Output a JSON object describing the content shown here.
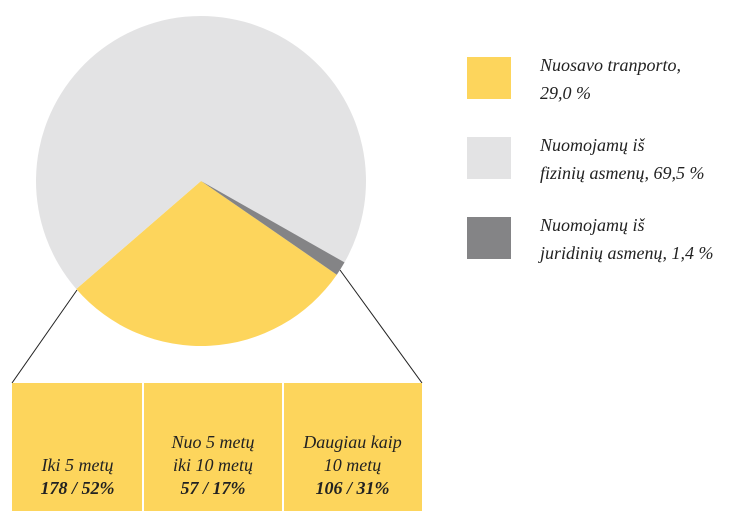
{
  "chart_data": {
    "type": "pie",
    "values": [
      29.0,
      69.5,
      1.4
    ],
    "colors": [
      "#fdd55c",
      "#e3e3e4",
      "#848486"
    ],
    "legend_lines": [
      [
        "Nuosavo tranporto,",
        "29,0 %"
      ],
      [
        "Nuomojamų iš",
        "fizinių asmenų, 69,5 %"
      ],
      [
        "Nuomojamų iš",
        "juridinių asmenų, 1,4 %"
      ]
    ],
    "breakdown": [
      {
        "lines": [
          "Iki 5 metų"
        ],
        "value": "178 / 52%"
      },
      {
        "lines": [
          "Nuo 5 metų",
          "iki 10 metų"
        ],
        "value": "57 / 17%"
      },
      {
        "lines": [
          "Daugiau kaip",
          "10 metų"
        ],
        "value": "106 / 31%"
      }
    ]
  }
}
